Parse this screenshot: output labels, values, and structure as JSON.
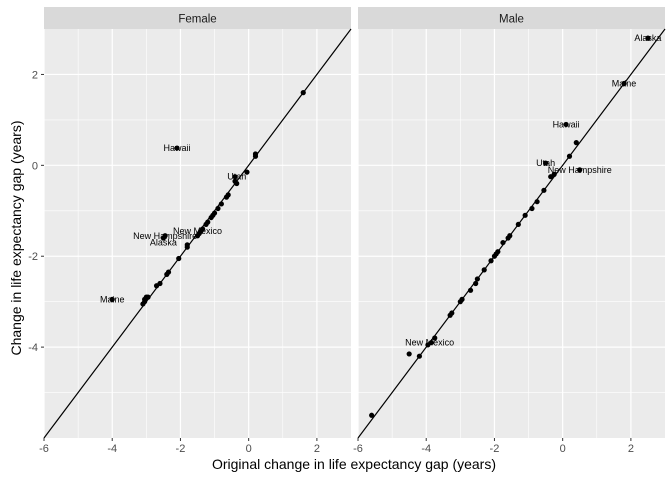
{
  "chart_data": {
    "type": "scatter",
    "xlabel": "Original change in life expectancy gap (years)",
    "ylabel": "Change in life expectancy gap (years)",
    "xlim": [
      -6,
      3
    ],
    "ylim": [
      -6,
      3
    ],
    "x_ticks": [
      -6,
      -4,
      -2,
      0,
      2
    ],
    "y_ticks": [
      -4,
      -2,
      0,
      2
    ],
    "grid": true,
    "reference_line": "y = x",
    "colors": {
      "panel_bg": "#ebebeb",
      "grid": "#ffffff",
      "strip_bg": "#d9d9d9",
      "point": "#000000",
      "line": "#000000"
    },
    "panels": [
      {
        "name": "Female",
        "points": [
          [
            1.6,
            1.6
          ],
          [
            0.2,
            0.25
          ],
          [
            0.2,
            0.2
          ],
          [
            -0.05,
            -0.15
          ],
          [
            -0.4,
            -0.25
          ],
          [
            -0.4,
            -0.35
          ],
          [
            -0.35,
            -0.4
          ],
          [
            -0.6,
            -0.65
          ],
          [
            -0.65,
            -0.7
          ],
          [
            -0.8,
            -0.85
          ],
          [
            -0.9,
            -0.95
          ],
          [
            -1.0,
            -1.05
          ],
          [
            -1.05,
            -1.1
          ],
          [
            -1.1,
            -1.15
          ],
          [
            -1.2,
            -1.25
          ],
          [
            -1.25,
            -1.3
          ],
          [
            -1.35,
            -1.4
          ],
          [
            -1.4,
            -1.45
          ],
          [
            -1.45,
            -1.5
          ],
          [
            -1.5,
            -1.55
          ],
          [
            -1.8,
            -1.75
          ],
          [
            -1.8,
            -1.8
          ],
          [
            -2.05,
            -2.05
          ],
          [
            -2.35,
            -2.35
          ],
          [
            -2.4,
            -2.4
          ],
          [
            -2.7,
            -2.65
          ],
          [
            -2.6,
            -2.6
          ],
          [
            -2.95,
            -2.9
          ],
          [
            -3.0,
            -2.9
          ],
          [
            -3.05,
            -3.0
          ],
          [
            -3.1,
            -3.05
          ],
          [
            -3.05,
            -2.95
          ],
          [
            -4.0,
            -2.95
          ],
          [
            -2.5,
            -1.6
          ],
          [
            -2.45,
            -1.55
          ],
          [
            -2.1,
            0.38
          ]
        ],
        "labels": [
          {
            "text": "Hawaii",
            "x": -2.1,
            "y": 0.38
          },
          {
            "text": "Utah",
            "x": -0.35,
            "y": -0.25
          },
          {
            "text": "New Mexico",
            "x": -1.5,
            "y": -1.45
          },
          {
            "text": "New Hampshire",
            "x": -2.45,
            "y": -1.55
          },
          {
            "text": "Alaska",
            "x": -2.5,
            "y": -1.7
          },
          {
            "text": "Maine",
            "x": -4.0,
            "y": -2.95
          }
        ]
      },
      {
        "name": "Male",
        "points": [
          [
            2.5,
            2.8
          ],
          [
            1.8,
            1.8
          ],
          [
            0.1,
            0.9
          ],
          [
            0.4,
            0.5
          ],
          [
            0.2,
            0.2
          ],
          [
            -0.5,
            0.05
          ],
          [
            0.5,
            -0.1
          ],
          [
            -0.25,
            -0.2
          ],
          [
            -0.35,
            -0.25
          ],
          [
            -0.55,
            -0.55
          ],
          [
            -0.75,
            -0.8
          ],
          [
            -0.9,
            -0.95
          ],
          [
            -1.1,
            -1.1
          ],
          [
            -1.3,
            -1.3
          ],
          [
            -1.55,
            -1.55
          ],
          [
            -1.6,
            -1.6
          ],
          [
            -1.75,
            -1.7
          ],
          [
            -1.9,
            -1.9
          ],
          [
            -1.95,
            -1.95
          ],
          [
            -2.0,
            -2.0
          ],
          [
            -2.1,
            -2.1
          ],
          [
            -2.3,
            -2.3
          ],
          [
            -2.5,
            -2.5
          ],
          [
            -2.55,
            -2.6
          ],
          [
            -2.7,
            -2.75
          ],
          [
            -2.95,
            -2.95
          ],
          [
            -3.0,
            -3.0
          ],
          [
            -3.25,
            -3.25
          ],
          [
            -3.3,
            -3.3
          ],
          [
            -3.75,
            -3.8
          ],
          [
            -3.85,
            -3.9
          ],
          [
            -3.95,
            -3.95
          ],
          [
            -4.2,
            -4.2
          ],
          [
            -4.5,
            -4.15
          ],
          [
            -5.6,
            -5.5
          ]
        ],
        "labels": [
          {
            "text": "Alaska",
            "x": 2.5,
            "y": 2.8
          },
          {
            "text": "Maine",
            "x": 1.8,
            "y": 1.8
          },
          {
            "text": "Hawaii",
            "x": 0.1,
            "y": 0.9
          },
          {
            "text": "Utah",
            "x": -0.5,
            "y": 0.05
          },
          {
            "text": "New Hampshire",
            "x": 0.5,
            "y": -0.1
          },
          {
            "text": "New Mexico",
            "x": -3.9,
            "y": -3.9
          }
        ]
      }
    ]
  }
}
